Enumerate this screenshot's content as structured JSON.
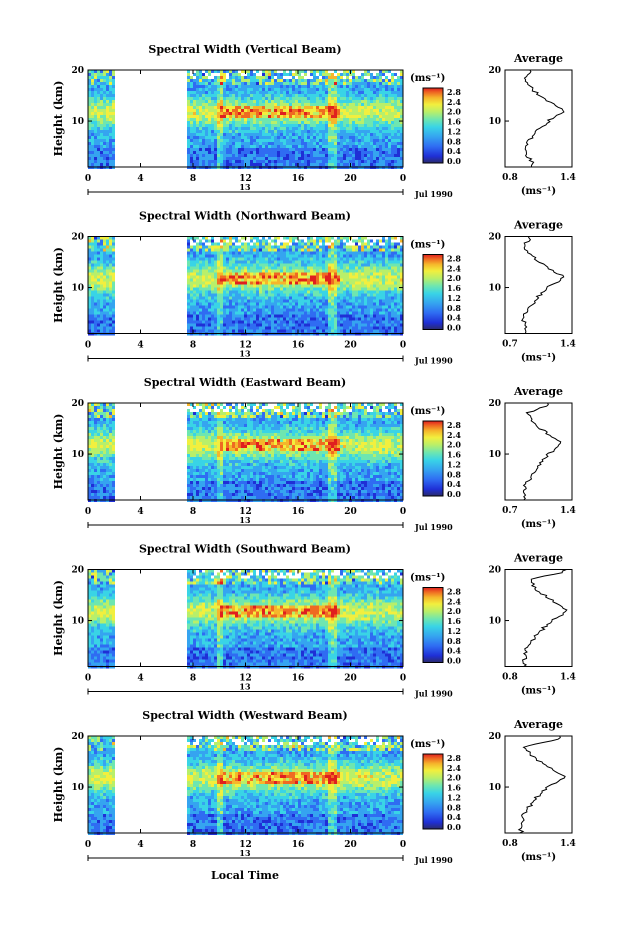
{
  "figure": {
    "bottom_xlabel": "Local Time",
    "avg_title": "Average",
    "colorbar_unit": "(ms⁻¹)",
    "xticks": [
      "0",
      "4",
      "8",
      "12",
      "16",
      "20",
      "0"
    ],
    "yticks": [
      "20",
      "10"
    ],
    "ylabel": "Height (km)",
    "date_label": "Jul 1990",
    "date_marker": "13",
    "colorbar_ticks": [
      "2.8",
      "2.4",
      "2.0",
      "1.6",
      "1.2",
      "0.8",
      "0.4",
      "0.0"
    ],
    "colors": {
      "scale": [
        "#2b2b6b",
        "#1f2fd6",
        "#2f6cf2",
        "#35a4f0",
        "#39d4e6",
        "#6ee6b0",
        "#b8ef6a",
        "#f2ef3e",
        "#f5b62b",
        "#ef6a22",
        "#e01f1f"
      ],
      "axis": "#000000",
      "gap": "#ffffff"
    }
  },
  "chart_data": [
    {
      "type": "heatmap",
      "title": "Spectral Width (Vertical Beam)",
      "xlabel": "",
      "ylabel": "Height (km)",
      "xlim": [
        0,
        24
      ],
      "ylim": [
        1,
        20
      ],
      "data_gap_hours": [
        2.2,
        7.5
      ],
      "peak_height_km": 12,
      "peak_width_ms": 2.8,
      "average_profile": {
        "xlim_label": [
          "0.8",
          "1.4"
        ],
        "xlabel": "(ms⁻¹)",
        "peak_height_km": 12,
        "heights": [
          2,
          4,
          6,
          8,
          10,
          12,
          14,
          16,
          18,
          19.5
        ],
        "values": [
          0.95,
          0.85,
          0.9,
          1.0,
          1.15,
          1.35,
          1.15,
          0.95,
          0.85,
          0.9
        ]
      }
    },
    {
      "type": "heatmap",
      "title": "Spectral Width (Northward Beam)",
      "xlabel": "",
      "ylabel": "Height (km)",
      "xlim": [
        0,
        24
      ],
      "ylim": [
        1,
        20
      ],
      "data_gap_hours": [
        2.2,
        7.5
      ],
      "peak_height_km": 12,
      "peak_width_ms": 2.6,
      "average_profile": {
        "xlim_label": [
          "0.7",
          "1.4"
        ],
        "xlabel": "(ms⁻¹)",
        "peak_height_km": 12,
        "heights": [
          2,
          4,
          6,
          8,
          10,
          12,
          14,
          16,
          18,
          19.5
        ],
        "values": [
          0.8,
          0.75,
          0.85,
          0.95,
          1.1,
          1.35,
          1.1,
          0.9,
          0.75,
          0.85
        ]
      }
    },
    {
      "type": "heatmap",
      "title": "Spectral Width (Eastward Beam)",
      "xlabel": "",
      "ylabel": "Height (km)",
      "xlim": [
        0,
        24
      ],
      "ylim": [
        1,
        20
      ],
      "data_gap_hours": [
        2.2,
        7.5
      ],
      "peak_height_km": 12,
      "peak_width_ms": 2.6,
      "average_profile": {
        "xlim_label": [
          "0.7",
          "1.4"
        ],
        "xlabel": "(ms⁻¹)",
        "peak_height_km": 12,
        "heights": [
          2,
          4,
          6,
          8,
          10,
          12,
          14,
          16,
          18,
          19.5
        ],
        "values": [
          0.78,
          0.78,
          0.9,
          1.0,
          1.12,
          1.3,
          1.1,
          0.92,
          0.8,
          1.1
        ]
      }
    },
    {
      "type": "heatmap",
      "title": "Spectral Width (Southward Beam)",
      "xlabel": "",
      "ylabel": "Height (km)",
      "xlim": [
        0,
        24
      ],
      "ylim": [
        1,
        20
      ],
      "data_gap_hours": [
        2.2,
        7.5
      ],
      "peak_height_km": 12,
      "peak_width_ms": 2.8,
      "average_profile": {
        "xlim_label": [
          "0.8",
          "1.4"
        ],
        "xlabel": "(ms⁻¹)",
        "peak_height_km": 12,
        "heights": [
          2,
          4,
          6,
          8,
          10,
          12,
          14,
          16,
          18,
          19.5
        ],
        "values": [
          0.85,
          0.85,
          0.95,
          1.05,
          1.2,
          1.4,
          1.2,
          1.0,
          0.9,
          1.35
        ]
      }
    },
    {
      "type": "heatmap",
      "title": "Spectral Width (Westward Beam)",
      "xlabel": "Local Time",
      "ylabel": "Height (km)",
      "xlim": [
        0,
        24
      ],
      "ylim": [
        1,
        20
      ],
      "data_gap_hours": [
        2.2,
        7.5
      ],
      "peak_height_km": 12,
      "peak_width_ms": 2.8,
      "average_profile": {
        "xlim_label": [
          "0.8",
          "1.4"
        ],
        "xlabel": "(ms⁻¹)",
        "peak_height_km": 12,
        "heights": [
          2,
          4,
          6,
          8,
          10,
          12,
          14,
          16,
          18,
          19.5
        ],
        "values": [
          0.8,
          0.82,
          0.9,
          1.0,
          1.15,
          1.38,
          1.15,
          0.95,
          0.85,
          1.3
        ]
      }
    }
  ]
}
